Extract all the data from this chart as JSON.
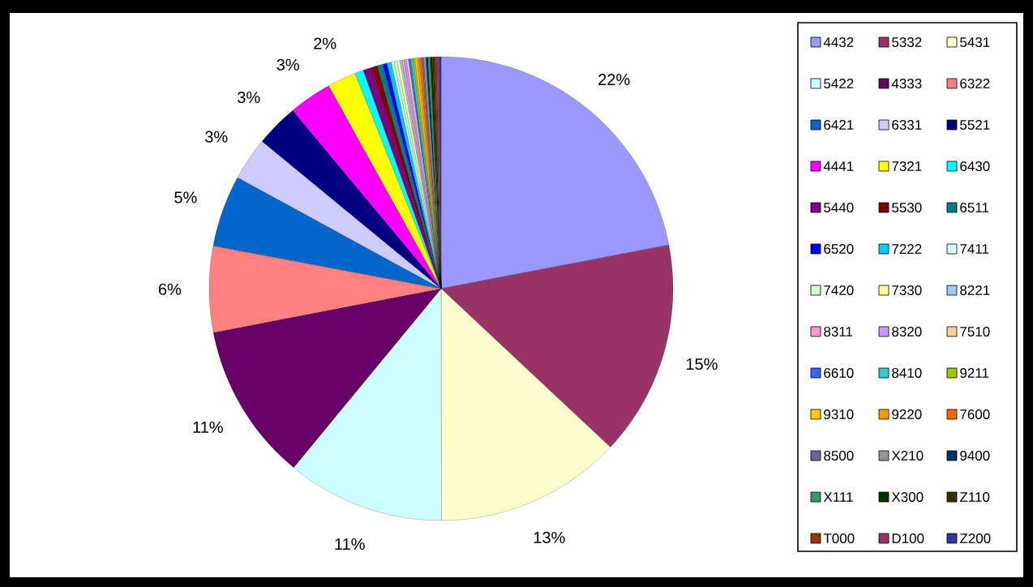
{
  "chart_data": {
    "type": "pie",
    "legend": "right",
    "categories": [
      "4432",
      "5332",
      "5431",
      "5422",
      "4333",
      "6322",
      "6421",
      "6331",
      "5521",
      "4441",
      "7321",
      "6430",
      "5440",
      "5530",
      "6511",
      "6520",
      "7222",
      "7411",
      "7420",
      "7330",
      "8221",
      "8311",
      "8320",
      "7510",
      "6610",
      "8410",
      "9211",
      "9310",
      "9220",
      "7600",
      "8500",
      "X210",
      "9400",
      "X111",
      "X300",
      "Z110",
      "T000",
      "D100",
      "Z200"
    ],
    "values": [
      22,
      15,
      13,
      11,
      11,
      6,
      5,
      3,
      3,
      3,
      2,
      0.6,
      0.6,
      0.4,
      0.4,
      0.3,
      0.3,
      0.2,
      0.2,
      0.2,
      0.15,
      0.15,
      0.15,
      0.15,
      0.15,
      0.15,
      0.15,
      0.15,
      0.15,
      0.15,
      0.15,
      0.15,
      0.15,
      0.15,
      0.15,
      0.15,
      0.15,
      0.15,
      0.15
    ],
    "value_labels": [
      "22%",
      "15%",
      "13%",
      "11%",
      "11%",
      "6%",
      "5%",
      "3%",
      "3%",
      "3%",
      "2%",
      null,
      null,
      null,
      null,
      null,
      null,
      null,
      null,
      null,
      null,
      null,
      null,
      null,
      null,
      null,
      null,
      null,
      null,
      null,
      null,
      null,
      null,
      null,
      null,
      null,
      null,
      null,
      null
    ],
    "colors": [
      "#9999ff",
      "#993366",
      "#ffffcc",
      "#ccffff",
      "#660066",
      "#ff8080",
      "#0066cc",
      "#ccccff",
      "#000080",
      "#ff00ff",
      "#ffff00",
      "#00ffff",
      "#800080",
      "#800000",
      "#008080",
      "#0000ff",
      "#00ccff",
      "#ccffff",
      "#ccffcc",
      "#ffff99",
      "#99ccff",
      "#ff99cc",
      "#cc99ff",
      "#ffcc99",
      "#3366ff",
      "#33cccc",
      "#99cc00",
      "#ffcc00",
      "#ff9900",
      "#ff6600",
      "#666699",
      "#969696",
      "#003366",
      "#339966",
      "#003300",
      "#333300",
      "#993300",
      "#993366",
      "#333399"
    ]
  }
}
